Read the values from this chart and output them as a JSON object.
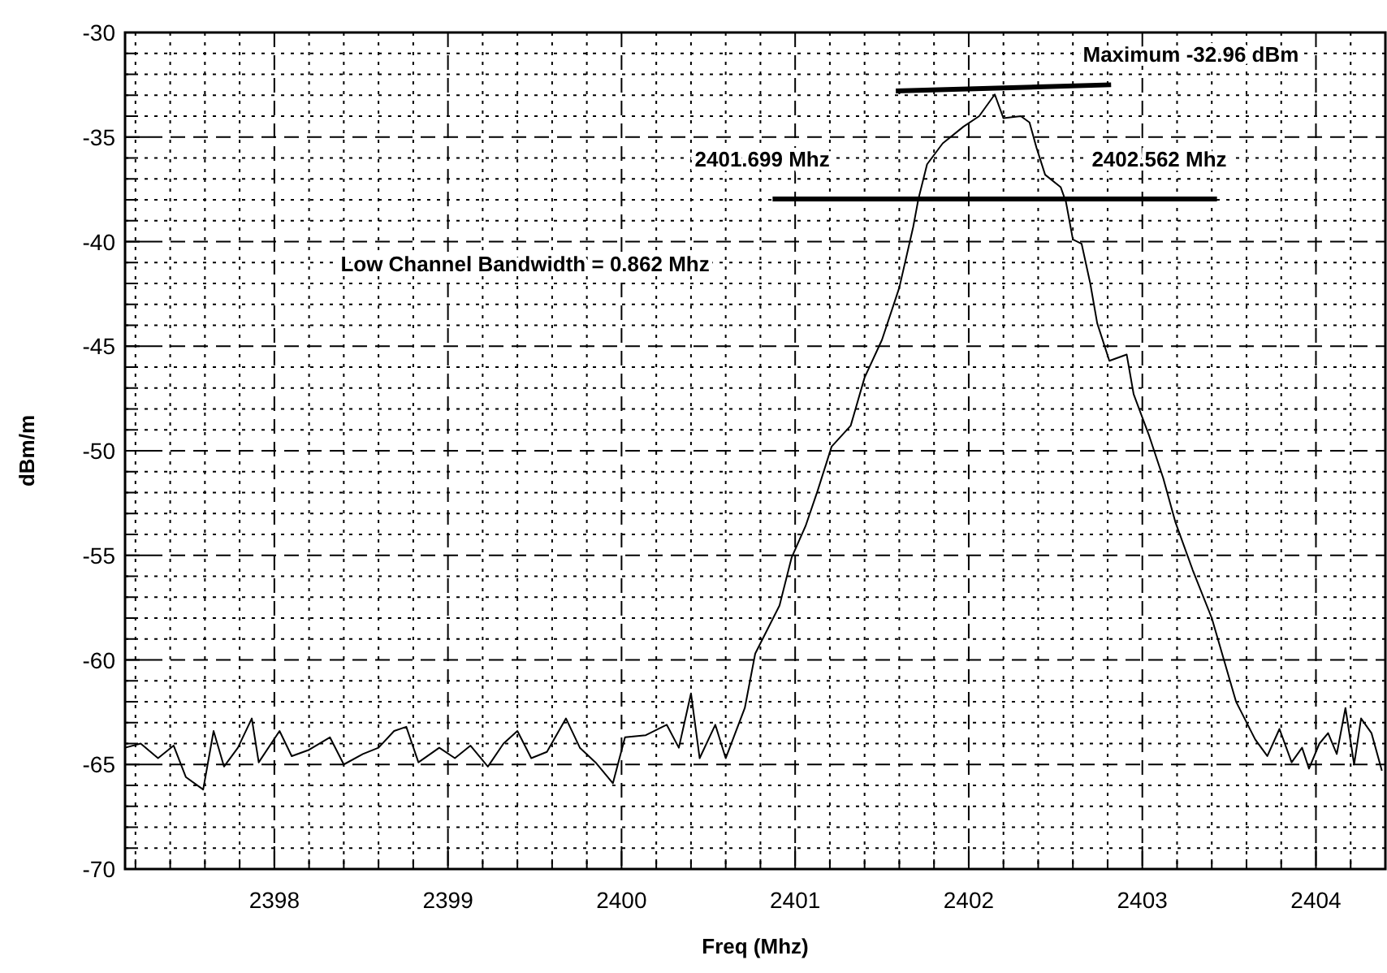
{
  "chart_data": {
    "type": "line",
    "xlabel": "Freq (Mhz)",
    "ylabel": "dBm/m",
    "xlim": [
      2397.14,
      2404.4
    ],
    "ylim": [
      -70,
      -30
    ],
    "xticks": [
      {
        "value": 2397.2,
        "label": null
      },
      {
        "value": 2397.4,
        "label": null
      },
      {
        "value": 2397.6,
        "label": null
      },
      {
        "value": 2397.8,
        "label": null
      },
      2398,
      {
        "value": 2398.2,
        "label": null
      },
      {
        "value": 2398.4,
        "label": null
      },
      {
        "value": 2398.6,
        "label": null
      },
      {
        "value": 2398.8,
        "label": null
      },
      2399,
      {
        "value": 2399.2,
        "label": null
      },
      {
        "value": 2399.4,
        "label": null
      },
      {
        "value": 2399.6,
        "label": null
      },
      {
        "value": 2399.8,
        "label": null
      },
      2400,
      {
        "value": 2400.2,
        "label": null
      },
      {
        "value": 2400.4,
        "label": null
      },
      {
        "value": 2400.6,
        "label": null
      },
      {
        "value": 2400.8,
        "label": null
      },
      2401,
      {
        "value": 2401.2,
        "label": null
      },
      {
        "value": 2401.4,
        "label": null
      },
      {
        "value": 2401.6,
        "label": null
      },
      {
        "value": 2401.8,
        "label": null
      },
      2402,
      {
        "value": 2402.2,
        "label": null
      },
      {
        "value": 2402.4,
        "label": null
      },
      {
        "value": 2402.6,
        "label": null
      },
      {
        "value": 2402.8,
        "label": null
      },
      2403,
      {
        "value": 2403.2,
        "label": null
      },
      {
        "value": 2403.4,
        "label": null
      },
      {
        "value": 2403.6,
        "label": null
      },
      {
        "value": 2403.8,
        "label": null
      },
      2404,
      {
        "value": 2404.2,
        "label": null
      }
    ],
    "yticks": [
      -70,
      {
        "value": -69,
        "label": null
      },
      {
        "value": -68,
        "label": null
      },
      {
        "value": -67,
        "label": null
      },
      {
        "value": -66,
        "label": null
      },
      -65,
      {
        "value": -64,
        "label": null
      },
      {
        "value": -63,
        "label": null
      },
      {
        "value": -62,
        "label": null
      },
      {
        "value": -61,
        "label": null
      },
      -60,
      {
        "value": -59,
        "label": null
      },
      {
        "value": -58,
        "label": null
      },
      {
        "value": -57,
        "label": null
      },
      {
        "value": -56,
        "label": null
      },
      -55,
      {
        "value": -54,
        "label": null
      },
      {
        "value": -53,
        "label": null
      },
      {
        "value": -52,
        "label": null
      },
      {
        "value": -51,
        "label": null
      },
      -50,
      {
        "value": -49,
        "label": null
      },
      {
        "value": -48,
        "label": null
      },
      {
        "value": -47,
        "label": null
      },
      {
        "value": -46,
        "label": null
      },
      -45,
      {
        "value": -44,
        "label": null
      },
      {
        "value": -43,
        "label": null
      },
      {
        "value": -42,
        "label": null
      },
      {
        "value": -41,
        "label": null
      },
      -40,
      {
        "value": -39,
        "label": null
      },
      {
        "value": -38,
        "label": null
      },
      {
        "value": -37,
        "label": null
      },
      {
        "value": -36,
        "label": null
      },
      -35,
      {
        "value": -34,
        "label": null
      },
      {
        "value": -33,
        "label": null
      },
      {
        "value": -32,
        "label": null
      },
      {
        "value": -31,
        "label": null
      },
      -30
    ],
    "grid": true,
    "marker": "none",
    "line_style": "solid",
    "series": [
      {
        "color": "#000000",
        "x": [
          2397.14,
          2397.23,
          2397.33,
          2397.42,
          2397.49,
          2397.59,
          2397.65,
          2397.71,
          2397.79,
          2397.87,
          2397.91,
          2398.03,
          2398.1,
          2398.2,
          2398.32,
          2398.4,
          2398.51,
          2398.6,
          2398.69,
          2398.76,
          2398.83,
          2398.95,
          2399.04,
          2399.13,
          2399.23,
          2399.32,
          2399.4,
          2399.48,
          2399.57,
          2399.68,
          2399.76,
          2399.85,
          2399.95,
          2400.02,
          2400.14,
          2400.26,
          2400.33,
          2400.4,
          2400.45,
          2400.54,
          2400.6,
          2400.71,
          2400.77,
          2400.91,
          2400.98,
          2401.06,
          2401.13,
          2401.21,
          2401.32,
          2401.4,
          2401.5,
          2401.6,
          2401.68,
          2401.71,
          2401.76,
          2401.85,
          2401.97,
          2402.06,
          2402.15,
          2402.2,
          2402.3,
          2402.35,
          2402.39,
          2402.44,
          2402.53,
          2402.56,
          2402.6,
          2402.65,
          2402.7,
          2402.74,
          2402.81,
          2402.91,
          2402.95,
          2403.04,
          2403.12,
          2403.19,
          2403.29,
          2403.4,
          2403.47,
          2403.54,
          2403.65,
          2403.72,
          2403.79,
          2403.86,
          2403.92,
          2403.96,
          2404.02,
          2404.07,
          2404.12,
          2404.17,
          2404.22,
          2404.26,
          2404.32,
          2404.38
        ],
        "values": [
          -64.2,
          -64,
          -64.7,
          -64.1,
          -65.6,
          -66.2,
          -63.4,
          -65.1,
          -64.2,
          -62.8,
          -64.9,
          -63.4,
          -64.6,
          -64.3,
          -63.7,
          -65,
          -64.5,
          -64.2,
          -63.4,
          -63.2,
          -64.9,
          -64.2,
          -64.7,
          -64.1,
          -65.1,
          -64,
          -63.4,
          -64.7,
          -64.4,
          -62.8,
          -64.2,
          -64.9,
          -65.9,
          -63.7,
          -63.6,
          -63.1,
          -64.2,
          -61.6,
          -64.7,
          -63.1,
          -64.7,
          -62.3,
          -59.7,
          -57.4,
          -55.1,
          -53.6,
          -51.9,
          -49.8,
          -48.8,
          -46.5,
          -44.7,
          -42.2,
          -39.3,
          -37.96,
          -36.3,
          -35.3,
          -34.5,
          -34,
          -32.96,
          -34.1,
          -34,
          -34.3,
          -35.5,
          -36.8,
          -37.4,
          -38.1,
          -39.9,
          -40.1,
          -42,
          -43.9,
          -45.7,
          -45.4,
          -47.3,
          -49.3,
          -51.3,
          -53.4,
          -55.7,
          -58,
          -60,
          -62,
          -63.8,
          -64.6,
          -63.3,
          -64.9,
          -64.2,
          -65.2,
          -64,
          -63.5,
          -64.5,
          -62.3,
          -65,
          -62.8,
          -63.5,
          -65.3
        ]
      },
      {
        "color": "#000000",
        "x": [
          2401.58,
          2402.82
        ],
        "values": [
          -32.8,
          -32.5
        ]
      },
      {
        "color": "#000000",
        "x": [
          2400.87,
          2403.43
        ],
        "values": [
          -37.96,
          -37.96
        ]
      }
    ],
    "annotations": [
      "Maximum -32.96 dBm",
      "2401.699 Mhz",
      "2402.562 Mhz",
      "Low Channel Bandwidth = 0.862 Mhz"
    ]
  }
}
